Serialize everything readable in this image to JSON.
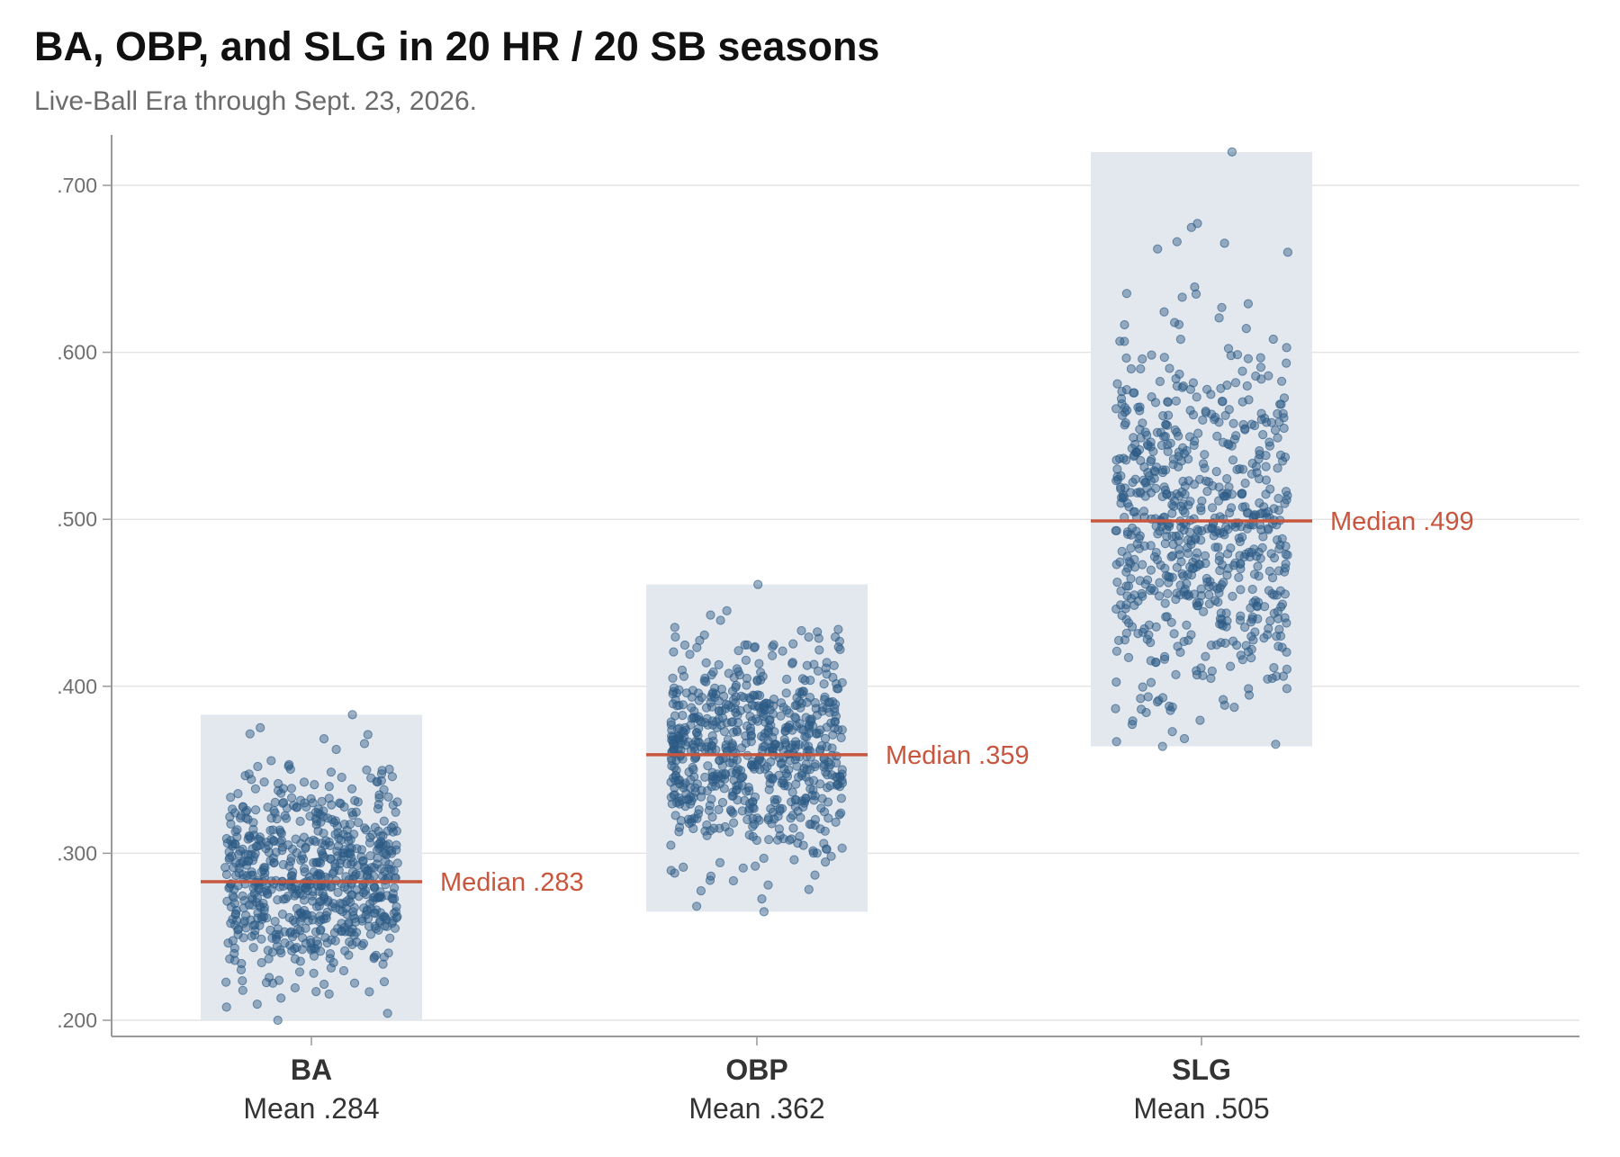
{
  "title": "BA, OBP, and SLG in 20 HR / 20 SB seasons",
  "subtitle": "Live-Ball Era through Sept. 23, 2026.",
  "colors": {
    "point": "#2c5a85",
    "band": "#e3e8ef",
    "median": "#c8553d",
    "grid": "#e4e4e4",
    "axis": "#999999"
  },
  "chart_data": {
    "type": "scatter",
    "subtype": "jitter-strip",
    "title": "BA, OBP, and SLG in 20 HR / 20 SB seasons",
    "subtitle": "Live-Ball Era through Sept. 23, 2026.",
    "ylim": [
      0.191,
      0.73
    ],
    "y_ticks": [
      0.2,
      0.3,
      0.4,
      0.5,
      0.6,
      0.7
    ],
    "y_tick_labels": [
      ".200",
      ".300",
      ".400",
      ".500",
      ".600",
      ".700"
    ],
    "grid": true,
    "legend": "none",
    "categories": [
      {
        "name": "BA",
        "mean_label": "Mean .284",
        "mean": 0.284,
        "median": 0.283,
        "median_label": "Median .283",
        "min": 0.2,
        "max": 0.383,
        "n_points": 700,
        "seed": 11
      },
      {
        "name": "OBP",
        "mean_label": "Mean .362",
        "mean": 0.362,
        "median": 0.359,
        "median_label": "Median .359",
        "min": 0.265,
        "max": 0.461,
        "n_points": 700,
        "seed": 23
      },
      {
        "name": "SLG",
        "mean_label": "Mean .505",
        "mean": 0.505,
        "median": 0.499,
        "median_label": "Median .499",
        "min": 0.364,
        "max": 0.72,
        "n_points": 700,
        "seed": 37
      }
    ]
  }
}
